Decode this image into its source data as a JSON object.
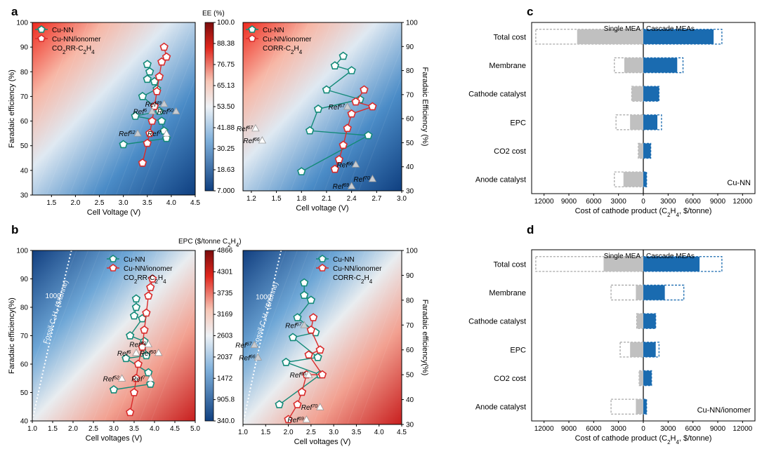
{
  "figure": {
    "panels": [
      {
        "letter": "a",
        "name": "panel-a"
      },
      {
        "letter": "b",
        "name": "panel-b"
      },
      {
        "letter": "c",
        "name": "panel-c"
      },
      {
        "letter": "d",
        "name": "panel-d"
      }
    ]
  },
  "colors": {
    "cu_nn": "#138a78",
    "cu_nn_ionomer": "#d92b2b",
    "solid_bar_left": "#c0c0c0",
    "solid_bar_right": "#1a6bb0",
    "dashed_left": "#a8a8a8",
    "dashed_right": "#1a6bb0",
    "map_low": "#0e3e7e",
    "map_mid": "#f2f2f2",
    "map_high": "#c81e1e"
  },
  "chart_data": [
    {
      "id": "a-left",
      "type": "scatter",
      "title": "",
      "xlabel": "Cell Voltage (V)",
      "ylabel": "Faradaic efficiency (%)",
      "xlim": [
        1.1,
        4.5
      ],
      "ylim": [
        30,
        100
      ],
      "xticks": [
        "1.5",
        "2.0",
        "2.5",
        "3.0",
        "3.5",
        "4.0",
        "4.5"
      ],
      "yticks": [
        "30",
        "40",
        "50",
        "60",
        "70",
        "80",
        "90",
        "100"
      ],
      "background": "heatmap",
      "legend": {
        "position": "top-left",
        "entries": [
          "Cu-NN",
          "Cu-NN/ionomer"
        ],
        "note_parts": [
          "CO",
          "2",
          "RR-C",
          "2",
          "H",
          "4"
        ]
      },
      "series": [
        {
          "name": "Cu-NN",
          "marker": "pentagon",
          "color": "#138a78",
          "points": [
            [
              3.0,
              50.5
            ],
            [
              3.25,
              62
            ],
            [
              3.4,
              70
            ],
            [
              3.5,
              77
            ],
            [
              3.55,
              80
            ],
            [
              3.5,
              83
            ],
            [
              3.65,
              76
            ],
            [
              3.7,
              73
            ],
            [
              3.75,
              64
            ],
            [
              3.8,
              60
            ],
            [
              3.85,
              56
            ],
            [
              3.9,
              53
            ]
          ]
        },
        {
          "name": "Cu-NN/ionomer",
          "marker": "pentagon",
          "color": "#d92b2b",
          "points": [
            [
              3.4,
              43
            ],
            [
              3.5,
              51
            ],
            [
              3.55,
              55
            ],
            [
              3.6,
              60
            ],
            [
              3.65,
              66
            ],
            [
              3.7,
              72
            ],
            [
              3.75,
              78
            ],
            [
              3.8,
              84
            ],
            [
              3.9,
              86
            ],
            [
              3.85,
              90
            ]
          ]
        }
      ],
      "refs": [
        {
          "label": "Ref",
          "sup": "52",
          "x": 3.3,
          "y": 55,
          "filled": true
        },
        {
          "label": "Ref",
          "sup": "6",
          "x": 3.6,
          "y": 64,
          "filled": true
        },
        {
          "label": "Ref",
          "sup": "49",
          "x": 3.85,
          "y": 67,
          "filled": true
        },
        {
          "label": "Ref",
          "sup": "50",
          "x": 4.1,
          "y": 64,
          "filled": true
        },
        {
          "label": "Ref",
          "sup": "7",
          "x": 3.9,
          "y": 55,
          "filled": false
        }
      ]
    },
    {
      "id": "a-right",
      "type": "scatter",
      "title": "",
      "xlabel": "Cell voltage (V)",
      "ylabel": "Faradaic Efficiency (%)",
      "xlim": [
        1.1,
        3.0
      ],
      "ylim": [
        30,
        100
      ],
      "xticks": [
        "1.2",
        "1.5",
        "1.8",
        "2.1",
        "2.4",
        "2.7",
        "3.0"
      ],
      "yticks": [
        "30",
        "40",
        "50",
        "60",
        "70",
        "80",
        "90",
        "100"
      ],
      "background": "heatmap",
      "legend": {
        "position": "top-left",
        "entries": [
          "Cu-NN",
          "Cu-NN/ionomer"
        ],
        "note_parts": [
          "CORR-C",
          "2",
          "H",
          "4"
        ]
      },
      "series": [
        {
          "name": "Cu-NN",
          "marker": "pentagon",
          "color": "#138a78",
          "points": [
            [
              1.8,
              38
            ],
            [
              1.9,
              55
            ],
            [
              2.0,
              64
            ],
            [
              2.1,
              72
            ],
            [
              2.2,
              82
            ],
            [
              2.3,
              86
            ],
            [
              2.4,
              80
            ],
            [
              2.5,
              68
            ],
            [
              2.6,
              53
            ]
          ]
        },
        {
          "name": "Cu-NN/ionomer",
          "marker": "pentagon",
          "color": "#d92b2b",
          "points": [
            [
              2.2,
              39
            ],
            [
              2.25,
              43
            ],
            [
              2.3,
              49
            ],
            [
              2.35,
              56
            ],
            [
              2.4,
              62
            ],
            [
              2.45,
              67
            ],
            [
              2.55,
              72
            ],
            [
              2.65,
              65
            ]
          ]
        }
      ],
      "refs": [
        {
          "label": "Ref",
          "sup": "67",
          "x": 1.25,
          "y": 56,
          "filled": false
        },
        {
          "label": "Ref",
          "sup": "66",
          "x": 1.33,
          "y": 51,
          "filled": false
        },
        {
          "label": "Ref",
          "sup": "67",
          "x": 2.35,
          "y": 65,
          "filled": true
        },
        {
          "label": "Ref",
          "sup": "66",
          "x": 2.45,
          "y": 41,
          "filled": true
        },
        {
          "label": "Ref",
          "sup": "69",
          "x": 2.4,
          "y": 32,
          "filled": true
        },
        {
          "label": "Ref",
          "sup": "70",
          "x": 2.65,
          "y": 35,
          "filled": true
        }
      ]
    },
    {
      "id": "a-colorbar",
      "type": "heatmap",
      "title": "EE (%)",
      "ticks": [
        "100.0",
        "88.38",
        "76.75",
        "65.13",
        "53.50",
        "41.88",
        "30.25",
        "18.63",
        "7.000"
      ]
    },
    {
      "id": "b-left",
      "type": "scatter",
      "title": "",
      "xlabel": "Cell voltages (V)",
      "ylabel": "Faradaic efficiency(%)",
      "xlim": [
        1.0,
        5.0
      ],
      "ylim": [
        40,
        100
      ],
      "xticks": [
        "1.0",
        "1.5",
        "2.0",
        "2.5",
        "3.0",
        "3.5",
        "4.0",
        "4.5",
        "5.0"
      ],
      "yticks": [
        "40",
        "50",
        "60",
        "70",
        "80",
        "90",
        "100"
      ],
      "background": "heatmap",
      "contour_labels": [
        "1000",
        "Fossil-C₂H₄ ($/tonne)"
      ],
      "legend": {
        "position": "top-right",
        "entries": [
          "Cu-NN",
          "Cu-NN/ionomer"
        ],
        "note_parts": [
          "CO",
          "2",
          "RR-C",
          "2",
          "H",
          "4"
        ]
      },
      "series": [
        {
          "name": "Cu-NN",
          "marker": "pentagon",
          "color": "#138a78",
          "points": [
            [
              3.0,
              51
            ],
            [
              3.3,
              62
            ],
            [
              3.4,
              70
            ],
            [
              3.5,
              77
            ],
            [
              3.55,
              80
            ],
            [
              3.55,
              83
            ],
            [
              3.7,
              76
            ],
            [
              3.75,
              68
            ],
            [
              3.8,
              63
            ],
            [
              3.85,
              57
            ],
            [
              3.9,
              53
            ]
          ]
        },
        {
          "name": "Cu-NN/ionomer",
          "marker": "pentagon",
          "color": "#d92b2b",
          "points": [
            [
              3.4,
              43
            ],
            [
              3.5,
              50
            ],
            [
              3.55,
              55
            ],
            [
              3.6,
              60
            ],
            [
              3.7,
              66
            ],
            [
              3.75,
              72
            ],
            [
              3.8,
              78
            ],
            [
              3.85,
              84
            ],
            [
              3.9,
              87
            ],
            [
              3.95,
              90
            ]
          ]
        }
      ],
      "refs": [
        {
          "label": "Ref",
          "sup": "52",
          "x": 3.2,
          "y": 55,
          "filled": false
        },
        {
          "label": "Ref",
          "sup": "6",
          "x": 3.55,
          "y": 64,
          "filled": false
        },
        {
          "label": "Ref",
          "sup": "49",
          "x": 3.85,
          "y": 67,
          "filled": false
        },
        {
          "label": "Ref",
          "sup": "50",
          "x": 4.1,
          "y": 64,
          "filled": false
        },
        {
          "label": "Ref",
          "sup": "7",
          "x": 3.9,
          "y": 55,
          "filled": false
        }
      ]
    },
    {
      "id": "b-right",
      "type": "scatter",
      "title": "",
      "xlabel": "Cell voltages (V)",
      "ylabel": "Faradaic efficiency(%)",
      "xlim": [
        1.0,
        4.5
      ],
      "ylim": [
        30,
        100
      ],
      "xticks": [
        "1.0",
        "1.5",
        "2.0",
        "2.5",
        "3.0",
        "3.5",
        "4.0",
        "4.5"
      ],
      "yticks": [
        "30",
        "40",
        "50",
        "60",
        "70",
        "80",
        "90",
        "100"
      ],
      "background": "heatmap",
      "contour_labels": [
        "1000",
        "Fossil-C₂H₄ ($/tonne)"
      ],
      "legend": {
        "position": "top-right",
        "entries": [
          "Cu-NN",
          "Cu-NN/ionomer"
        ],
        "note_parts": [
          "CORR-C",
          "2",
          "H",
          "4"
        ]
      },
      "series": [
        {
          "name": "Cu-NN",
          "marker": "pentagon",
          "color": "#138a78",
          "points": [
            [
              1.8,
              38
            ],
            [
              1.95,
              55
            ],
            [
              2.1,
              65
            ],
            [
              2.2,
              73
            ],
            [
              2.35,
              82
            ],
            [
              2.35,
              87
            ],
            [
              2.5,
              80
            ],
            [
              2.6,
              67
            ],
            [
              2.65,
              57
            ],
            [
              2.7,
              50
            ]
          ]
        },
        {
          "name": "Cu-NN/ionomer",
          "marker": "pentagon",
          "color": "#d92b2b",
          "points": [
            [
              2.0,
              32
            ],
            [
              2.2,
              38
            ],
            [
              2.3,
              43
            ],
            [
              2.4,
              50
            ],
            [
              2.45,
              58
            ],
            [
              2.5,
              68
            ],
            [
              2.55,
              73
            ],
            [
              2.7,
              60
            ],
            [
              2.75,
              50
            ]
          ]
        }
      ],
      "refs": [
        {
          "label": "Ref",
          "sup": "67",
          "x": 1.25,
          "y": 62,
          "filled": true
        },
        {
          "label": "Ref",
          "sup": "66",
          "x": 1.33,
          "y": 57,
          "filled": true
        },
        {
          "label": "Ref",
          "sup": "67",
          "x": 2.35,
          "y": 70,
          "filled": true
        },
        {
          "label": "Ref",
          "sup": "66",
          "x": 2.45,
          "y": 50,
          "filled": false
        },
        {
          "label": "Ref",
          "sup": "70",
          "x": 2.7,
          "y": 37,
          "filled": false
        },
        {
          "label": "Ref",
          "sup": "69",
          "x": 2.4,
          "y": 32,
          "filled": false
        }
      ]
    },
    {
      "id": "b-colorbar",
      "type": "heatmap",
      "title_parts": [
        "EPC ($/tonne C",
        "2",
        "H",
        "4",
        ")"
      ],
      "ticks": [
        "4866",
        "4301",
        "3735",
        "3169",
        "2603",
        "2037",
        "1472",
        "905.8",
        "340.0"
      ]
    },
    {
      "id": "c",
      "type": "bar",
      "orientation": "horizontal",
      "xlabel_parts": [
        "Cost of cathode product (C",
        "2",
        "H",
        "4",
        ", $/tonne)"
      ],
      "xlim": [
        -13500,
        13500
      ],
      "xticks": [
        "12000",
        "9000",
        "6000",
        "3000",
        "0",
        "3000",
        "6000",
        "9000",
        "12000"
      ],
      "left_header": "Single MEA",
      "right_header": "Cascade MEAs",
      "note": "Cu-NN",
      "categories": [
        "Total cost",
        "Membrane",
        "Cathode catalyst",
        "EPC",
        "CO2 cost",
        "Anode catalyst"
      ],
      "series": [
        {
          "name": "Single MEA",
          "values": [
            8000,
            2300,
            1400,
            1600,
            600,
            2400
          ]
        },
        {
          "name": "Cascade MEAs",
          "values": [
            8500,
            4100,
            1900,
            1700,
            900,
            400
          ]
        }
      ],
      "dashed": {
        "single": [
          13000,
          3500,
          1400,
          3300,
          600,
          3500
        ],
        "cascade": [
          9500,
          4800,
          1900,
          2200,
          900,
          400
        ]
      }
    },
    {
      "id": "d",
      "type": "bar",
      "orientation": "horizontal",
      "xlabel_parts": [
        "Cost of cathode product (C",
        "2",
        "H",
        "4",
        ", $/tonne)"
      ],
      "xlim": [
        -13500,
        13500
      ],
      "xticks": [
        "12000",
        "9000",
        "6000",
        "3000",
        "0",
        "3000",
        "6000",
        "9000",
        "12000"
      ],
      "left_header": "Single MEA",
      "right_header": "Cascade MEAs",
      "note": "Cu-NN/ionomer",
      "categories": [
        "Total cost",
        "Membrane",
        "Cathode catalyst",
        "EPC",
        "CO2 cost",
        "Anode catalyst"
      ],
      "series": [
        {
          "name": "Single MEA",
          "values": [
            4800,
            900,
            800,
            1600,
            500,
            900
          ]
        },
        {
          "name": "Cascade MEAs",
          "values": [
            6800,
            2600,
            1500,
            1500,
            1000,
            400
          ]
        }
      ],
      "dashed": {
        "single": [
          13000,
          3900,
          800,
          2800,
          500,
          3900
        ],
        "cascade": [
          9500,
          4900,
          1500,
          1900,
          1000,
          400
        ]
      }
    }
  ]
}
